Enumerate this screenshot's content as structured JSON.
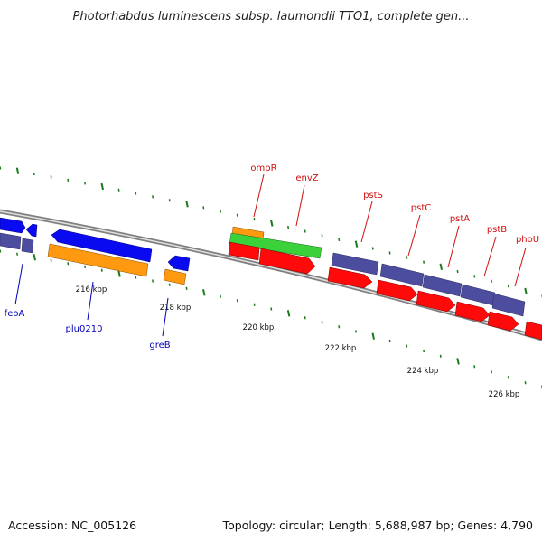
{
  "title": "Photorhabdus luminescens subsp. laumondii TTO1, complete gen...",
  "accession": "Accession: NC_005126",
  "topology": "Topology: circular; Length: 5,688,987 bp; Genes: 4,790",
  "colors": {
    "blue": "#0a0af0",
    "orange": "#ff9a10",
    "purple": "#4d4da0",
    "red": "#ff0a0a",
    "green": "#3ad13a",
    "backbone": "#808080",
    "ticks": "#1a7a1a",
    "label_blue": "#0000b4",
    "label_red": "#d01010"
  },
  "scale_labels": [
    "216 kbp",
    "218 kbp",
    "220 kbp",
    "222 kbp",
    "224 kbp",
    "226 kbp"
  ],
  "labels": {
    "feoA": "feoA",
    "plu0210": "plu0210",
    "greB": "greB",
    "ompR": "ompR",
    "envZ": "envZ",
    "pstS": "pstS",
    "pstC": "pstC",
    "pstA": "pstA",
    "pstB": "pstB",
    "phoU": "phoU"
  }
}
